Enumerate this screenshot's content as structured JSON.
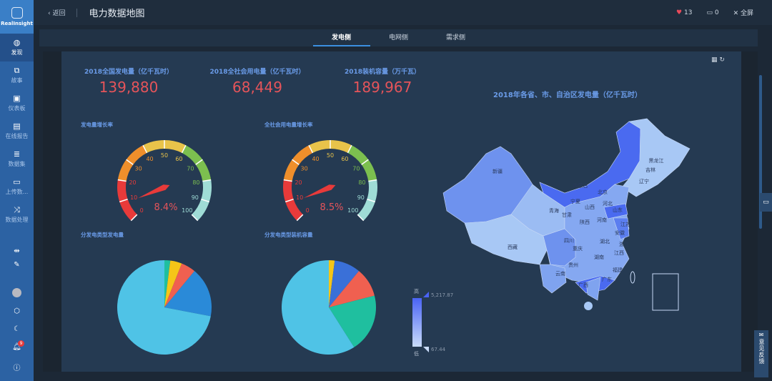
{
  "brand": "RealInsight",
  "sidebar": {
    "items": [
      {
        "label": "发现",
        "icon": "globe-icon",
        "active": true
      },
      {
        "label": "故事",
        "icon": "story-icon"
      },
      {
        "label": "仪表板",
        "icon": "dashboard-icon"
      },
      {
        "label": "在线报告",
        "icon": "report-icon"
      },
      {
        "label": "数据集",
        "icon": "dataset-icon"
      },
      {
        "label": "上传数...",
        "icon": "folder-icon"
      },
      {
        "label": "数据处理",
        "icon": "shuffle-icon"
      }
    ],
    "notifications": "9"
  },
  "header": {
    "back": "返回",
    "title": "电力数据地图",
    "likes": "13",
    "comments": "0",
    "fullscreen": "全屏"
  },
  "tabs": [
    {
      "label": "发电侧",
      "active": true
    },
    {
      "label": "电网侧"
    },
    {
      "label": "需求侧"
    }
  ],
  "stats": [
    {
      "label": "2018全国发电量（亿千瓦时）",
      "value": "139,880"
    },
    {
      "label": "2018全社会用电量（亿千瓦时）",
      "value": "68,449"
    },
    {
      "label": "2018装机容量（万千瓦）",
      "value": "189,967"
    }
  ],
  "colors": {
    "accent": "#3b8fe0",
    "value": "#e5545a",
    "label": "#6a9be8"
  },
  "chart_data": [
    {
      "type": "gauge",
      "title": "发电量增长率",
      "value": 8.4,
      "display": "8.4%",
      "min": 0,
      "max": 100,
      "ticks": [
        "0",
        "10",
        "20",
        "30",
        "40",
        "50",
        "60",
        "70",
        "80",
        "90",
        "100"
      ],
      "bands": [
        {
          "to": 20,
          "color": "#e83a3a"
        },
        {
          "to": 40,
          "color": "#ef8f2b"
        },
        {
          "to": 60,
          "color": "#e8c34a"
        },
        {
          "to": 80,
          "color": "#7cbf4f"
        },
        {
          "to": 100,
          "color": "#9fdcd6"
        }
      ]
    },
    {
      "type": "gauge",
      "title": "全社会用电量增长率",
      "value": 8.5,
      "display": "8.5%",
      "min": 0,
      "max": 100,
      "ticks": [
        "0",
        "10",
        "20",
        "30",
        "40",
        "50",
        "60",
        "70",
        "80",
        "90",
        "100"
      ],
      "bands": [
        {
          "to": 20,
          "color": "#e83a3a"
        },
        {
          "to": 40,
          "color": "#ef8f2b"
        },
        {
          "to": 60,
          "color": "#e8c34a"
        },
        {
          "to": 80,
          "color": "#7cbf4f"
        },
        {
          "to": 100,
          "color": "#9fdcd6"
        }
      ]
    },
    {
      "type": "pie",
      "title": "分发电类型发电量",
      "values": [
        2,
        4,
        5,
        17,
        72
      ],
      "colors": [
        "#1fbf9f",
        "#f5c518",
        "#f06050",
        "#2a8ad8",
        "#4fc3e6"
      ]
    },
    {
      "type": "pie",
      "title": "分发电类型装机容量",
      "values": [
        2,
        9,
        10,
        20,
        59
      ],
      "colors": [
        "#f5c518",
        "#3a70d8",
        "#f06050",
        "#1fbf9f",
        "#4fc3e6"
      ]
    },
    {
      "type": "map",
      "title": "2018年各省、市、自治区发电量（亿千瓦时）",
      "legend": {
        "high_label": "高",
        "low_label": "低",
        "max": "5,217.87",
        "min": "67.44"
      },
      "labels": [
        "新疆",
        "西藏",
        "青海",
        "甘肃",
        "宁夏",
        "内蒙古",
        "黑龙江",
        "吉林",
        "辽宁",
        "北京",
        "河北",
        "山西",
        "山东",
        "陕西",
        "河南",
        "四川",
        "重庆",
        "湖北",
        "安徽",
        "江苏",
        "浙江",
        "湖南",
        "江西",
        "贵州",
        "云南",
        "广西",
        "广东",
        "福建"
      ]
    }
  ],
  "feedback": "意见反馈"
}
